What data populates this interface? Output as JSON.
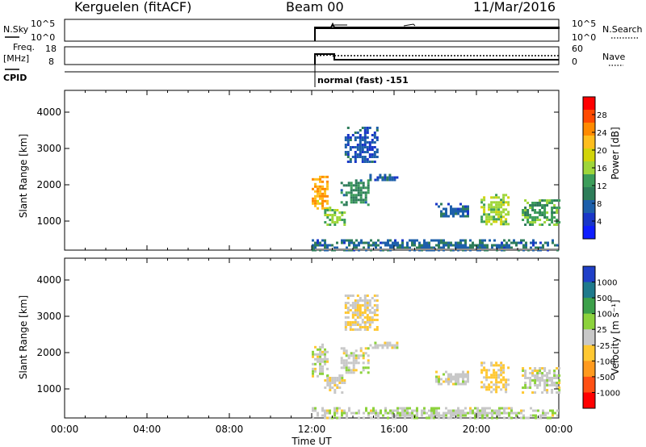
{
  "header": {
    "station": "Kerguelen (fitACF)",
    "beam": "Beam 00",
    "date": "11/Mar/2016"
  },
  "strips": {
    "nsky_label": "N.Sky",
    "nsearch_label": "N.Search",
    "nsky_ticks": [
      "10^5",
      "10^0"
    ],
    "freq_label": "Freq.",
    "freq_unit": "[MHz]",
    "freq_ticks": [
      "18",
      "8"
    ],
    "nave_label": "Nave",
    "nave_ticks": [
      "60",
      "0"
    ],
    "cpid_label": "CPID",
    "cpid_value": "normal (fast) -151"
  },
  "axes": {
    "ylabel": "Slant Range [km]",
    "xlabel": "Time UT",
    "x_ticks": [
      "00:00",
      "04:00",
      "08:00",
      "12:00",
      "16:00",
      "20:00",
      "00:00"
    ],
    "y_ticks": [
      "4000",
      "3000",
      "2000",
      "1000"
    ]
  },
  "colorbars": {
    "power": {
      "label": "Power [dB]",
      "ticks": [
        "28",
        "24",
        "20",
        "16",
        "12",
        "8",
        "4"
      ],
      "colors": [
        "#ff0000",
        "#ff4a00",
        "#ff8a00",
        "#ffbe1e",
        "#d2d40a",
        "#9ed63a",
        "#3c9d5a",
        "#2e7d5a",
        "#1d5faa",
        "#1936c8",
        "#0f1eff"
      ]
    },
    "velocity": {
      "label": "Velocity [m s⁻¹]",
      "ticks": [
        "1000",
        "500",
        "100",
        "25",
        "-25",
        "-100",
        "-500",
        "-1000"
      ],
      "colors": [
        "#2040c8",
        "#1f7a8c",
        "#3ca04a",
        "#8cd23c",
        "#c8c8c8",
        "#ffc832",
        "#ff9a1e",
        "#ff5014",
        "#ff0000"
      ]
    }
  },
  "chart_data": [
    {
      "type": "heatmap",
      "panel": "power",
      "title": "Kerguelen (fitACF) Beam 00 11/Mar/2016",
      "xlabel": "Time UT",
      "ylabel": "Slant Range [km]",
      "xlim_hours": [
        0,
        24
      ],
      "ylim_km": [
        200,
        4600
      ],
      "colorbar_label": "Power [dB]",
      "colorbar_range": [
        0,
        30
      ],
      "regions": [
        {
          "t0": 12.0,
          "t1": 12.8,
          "r0": 1350,
          "r1": 2250,
          "level": 22
        },
        {
          "t0": 12.6,
          "t1": 13.6,
          "r0": 900,
          "r1": 1400,
          "level": 14
        },
        {
          "t0": 13.4,
          "t1": 14.8,
          "r0": 1450,
          "r1": 2150,
          "level": 10
        },
        {
          "t0": 14.8,
          "t1": 16.2,
          "r0": 2100,
          "r1": 2300,
          "level": 6
        },
        {
          "t0": 13.6,
          "t1": 15.2,
          "r0": 2600,
          "r1": 3600,
          "level": 5
        },
        {
          "t0": 20.2,
          "t1": 21.6,
          "r0": 900,
          "r1": 1750,
          "level": 15
        },
        {
          "t0": 22.2,
          "t1": 24.0,
          "r0": 900,
          "r1": 1600,
          "level": 12
        },
        {
          "t0": 18.0,
          "t1": 19.6,
          "r0": 1100,
          "r1": 1500,
          "level": 6
        },
        {
          "t0": 12.0,
          "t1": 24.0,
          "r0": 200,
          "r1": 500,
          "level": 7
        }
      ]
    },
    {
      "type": "heatmap",
      "panel": "velocity",
      "xlabel": "Time UT",
      "ylabel": "Slant Range [km]",
      "xlim_hours": [
        0,
        24
      ],
      "ylim_km": [
        200,
        4600
      ],
      "colorbar_label": "Velocity [m s⁻¹]",
      "colorbar_range": [
        -1000,
        1000
      ],
      "regions": [
        {
          "t0": 12.0,
          "t1": 12.8,
          "r0": 1350,
          "r1": 2250,
          "level": 0
        },
        {
          "t0": 12.6,
          "t1": 13.6,
          "r0": 900,
          "r1": 1400,
          "level": -60
        },
        {
          "t0": 13.4,
          "t1": 14.8,
          "r0": 1450,
          "r1": 2150,
          "level": 0
        },
        {
          "t0": 14.8,
          "t1": 16.2,
          "r0": 2100,
          "r1": 2300,
          "level": 0
        },
        {
          "t0": 13.6,
          "t1": 15.2,
          "r0": 2600,
          "r1": 3600,
          "level": -120
        },
        {
          "t0": 20.2,
          "t1": 21.6,
          "r0": 900,
          "r1": 1750,
          "level": -200
        },
        {
          "t0": 22.2,
          "t1": 24.0,
          "r0": 900,
          "r1": 1600,
          "level": 0
        },
        {
          "t0": 18.0,
          "t1": 19.6,
          "r0": 1100,
          "r1": 1500,
          "level": 0
        },
        {
          "t0": 12.0,
          "t1": 24.0,
          "r0": 200,
          "r1": 500,
          "level": 60
        }
      ]
    }
  ]
}
